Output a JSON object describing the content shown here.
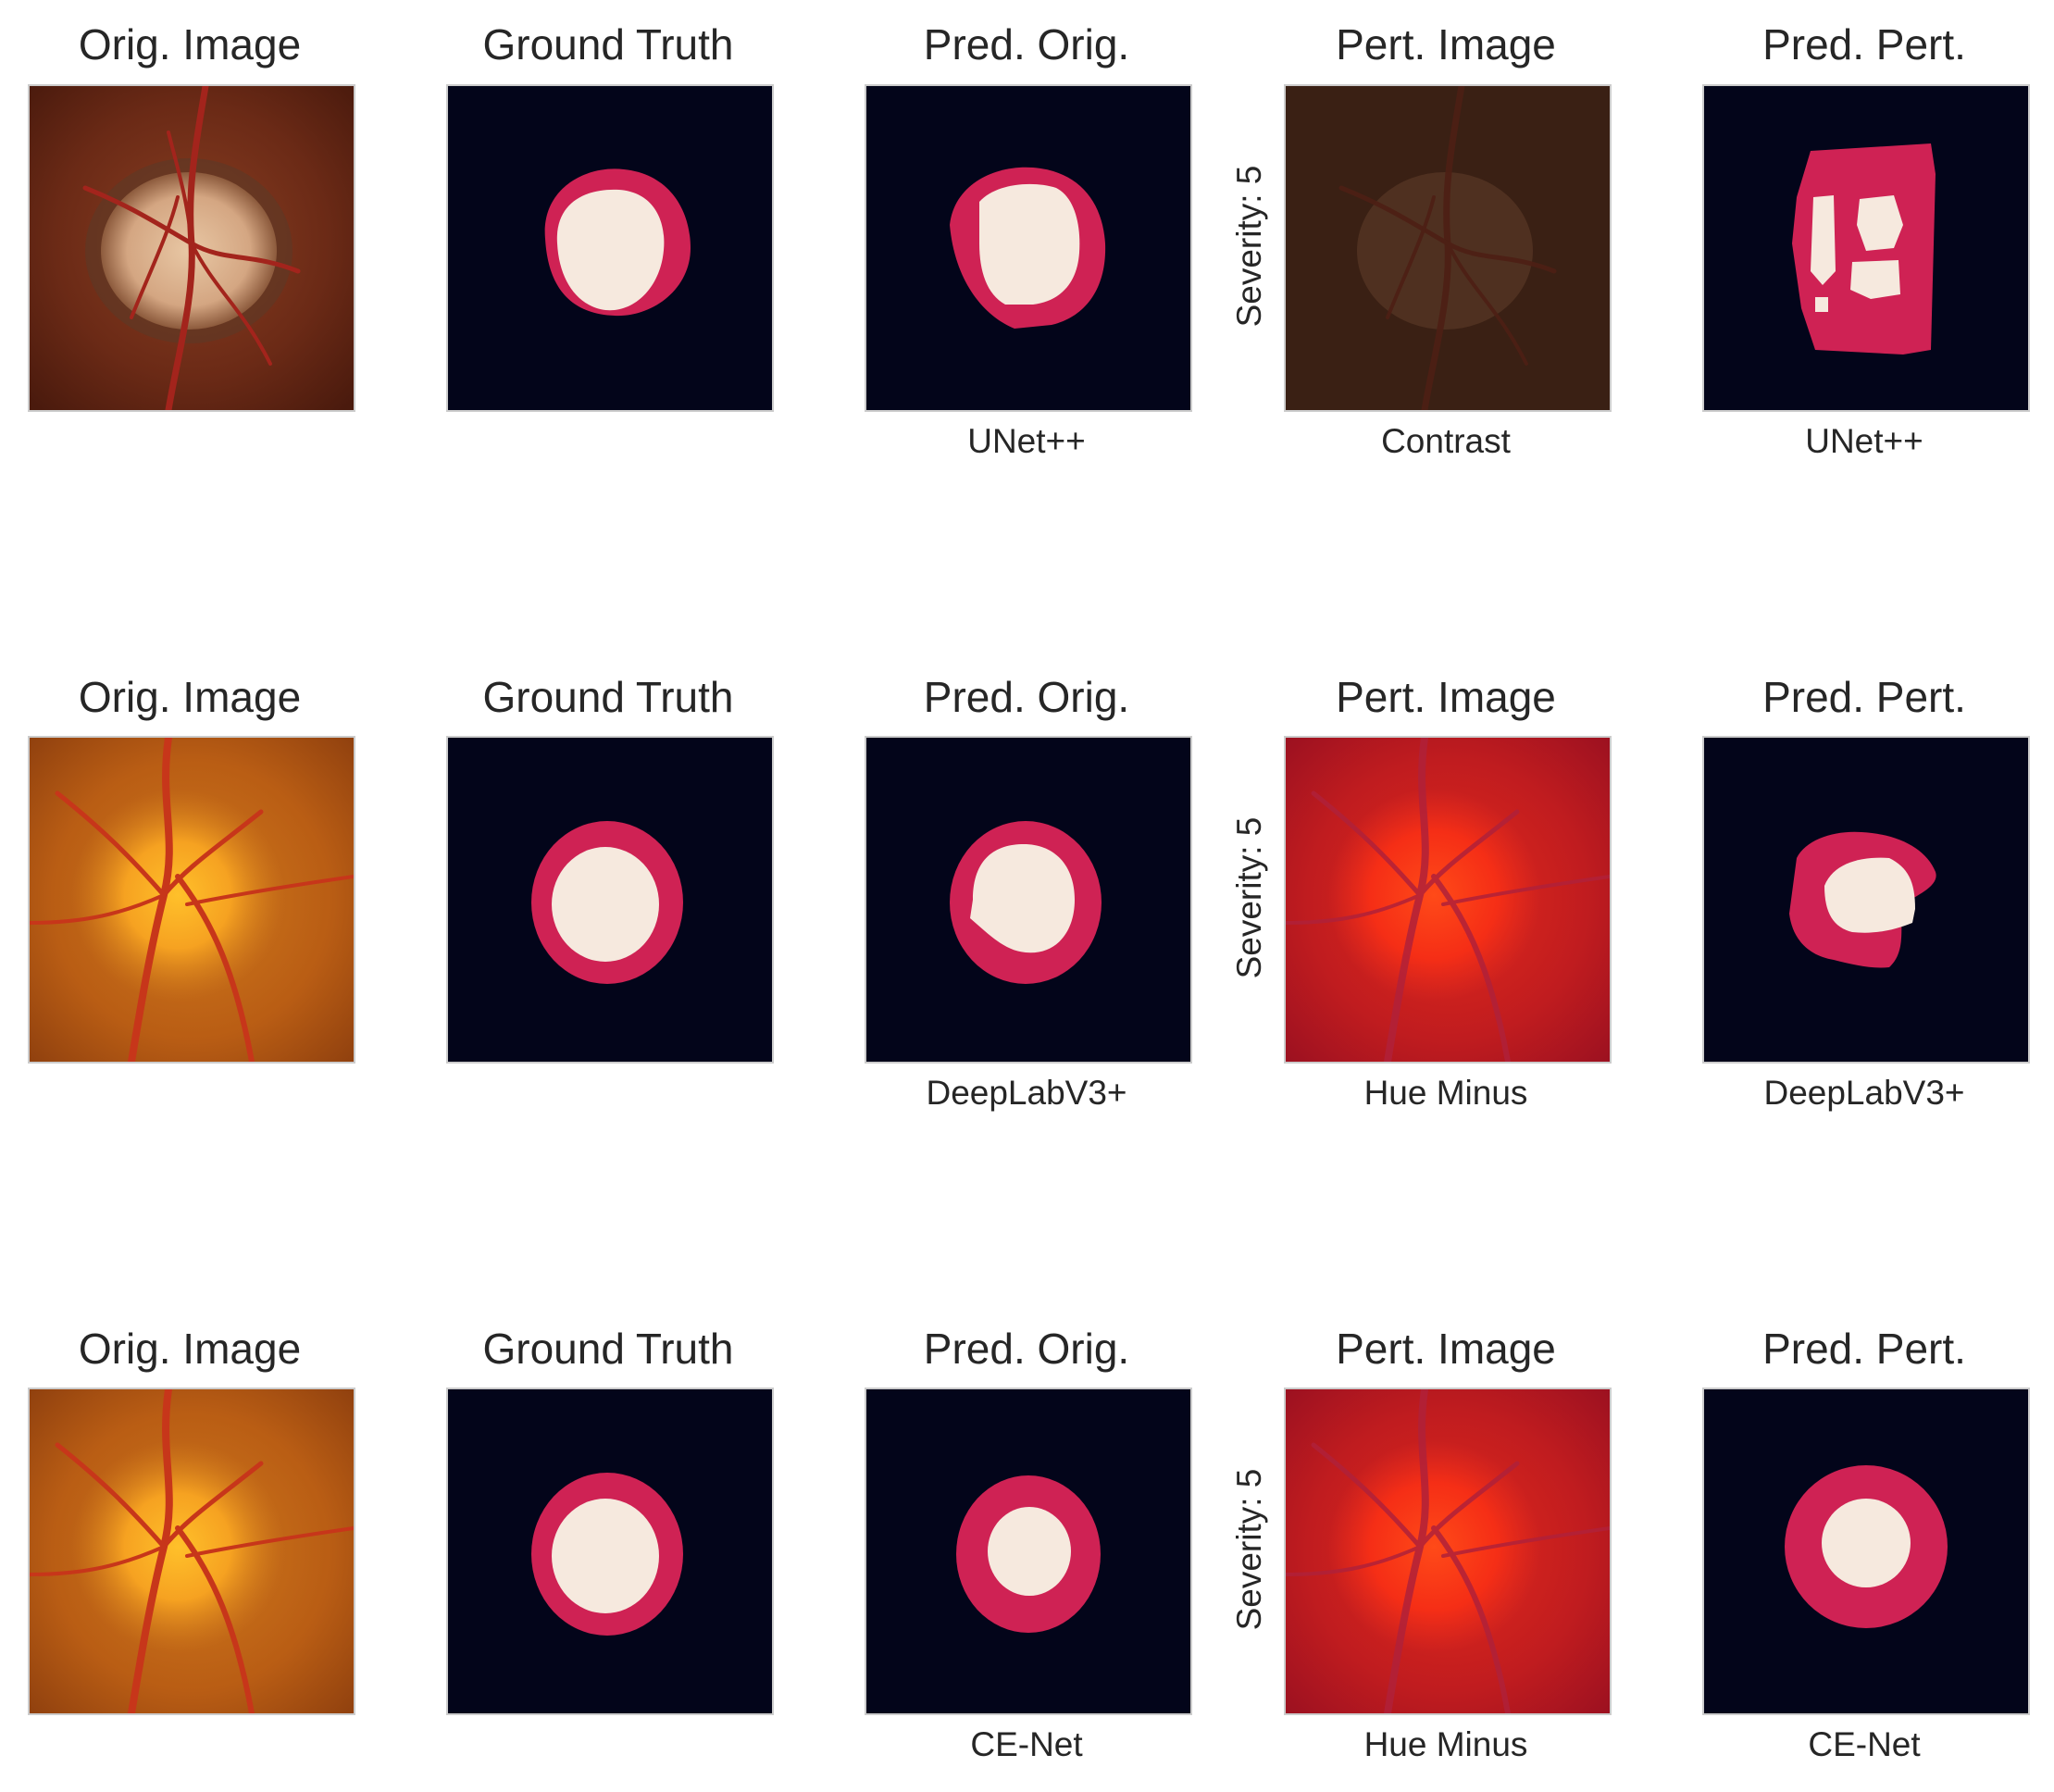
{
  "rows": [
    {
      "titles": [
        "Orig. Image",
        "Ground Truth",
        "Pred. Orig.",
        "Pert. Image",
        "Pred. Pert."
      ],
      "model": "UNet++",
      "perturbation": "Contrast",
      "severity_label": "Severity: 5"
    },
    {
      "titles": [
        "Orig. Image",
        "Ground Truth",
        "Pred. Orig.",
        "Pert. Image",
        "Pred. Pert."
      ],
      "model": "DeepLabV3+",
      "perturbation": "Hue Minus",
      "severity_label": "Severity: 5"
    },
    {
      "titles": [
        "Orig. Image",
        "Ground Truth",
        "Pred. Orig.",
        "Pert. Image",
        "Pred. Pert."
      ],
      "model": "CE-Net",
      "perturbation": "Hue Minus",
      "severity_label": "Severity: 5"
    }
  ],
  "colors": {
    "mask_background": "#03051a",
    "optic_disc": "#cf2254",
    "optic_cup": "#f6e9de"
  }
}
